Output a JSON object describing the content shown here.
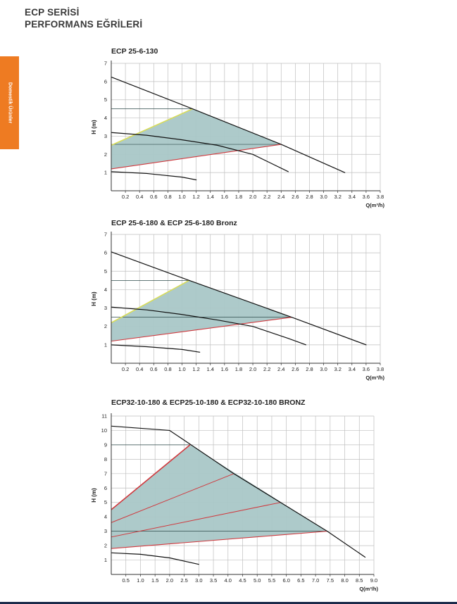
{
  "header": {
    "line1": "ECP SERİSİ",
    "line2": "PERFORMANS EĞRİLERİ"
  },
  "side_tab": {
    "label": "Domestik Ürünler",
    "color": "#ee7b22"
  },
  "colors": {
    "fill": "#a9c7c7",
    "min_line": "#d0393e",
    "upper_line": "#d8dc59",
    "curve": "#111111",
    "grid": "#bfbfbf"
  },
  "chart_data": [
    {
      "type": "line",
      "title": "ECP 25-6-130",
      "xlabel": "Q(m³/h)",
      "ylabel": "H (m)",
      "xlim": [
        0,
        3.8
      ],
      "ylim": [
        0,
        7
      ],
      "x_ticks": [
        "0.2",
        "0.4",
        "0.6",
        "0.8",
        "1.0",
        "1.2",
        "1.4",
        "1.6",
        "1.8",
        "2.0",
        "2.2",
        "2.4",
        "2.6",
        "2.8",
        "3.0",
        "3.2",
        "3.4",
        "3.6",
        "3.8"
      ],
      "y_ticks": [
        "1",
        "2",
        "3",
        "4",
        "5",
        "6",
        "7"
      ],
      "operating_area": [
        [
          0,
          2.5
        ],
        [
          1.15,
          4.5
        ],
        [
          2.4,
          2.55
        ],
        [
          0,
          1.2
        ]
      ],
      "series": [
        {
          "points": [
            [
              0,
              6.25
            ],
            [
              1.15,
              4.5
            ],
            [
              2.4,
              2.55
            ],
            [
              3.3,
              1.0
            ]
          ]
        },
        {
          "points": [
            [
              0,
              3.2
            ],
            [
              0.5,
              3.05
            ],
            [
              1.0,
              2.8
            ],
            [
              1.5,
              2.5
            ],
            [
              2.0,
              2.0
            ],
            [
              2.5,
              1.05
            ]
          ]
        },
        {
          "points": [
            [
              0,
              1.05
            ],
            [
              0.5,
              0.95
            ],
            [
              1.0,
              0.75
            ],
            [
              1.2,
              0.6
            ]
          ]
        }
      ]
    },
    {
      "type": "line",
      "title": "ECP 25-6-180 & ECP 25-6-180 Bronz",
      "xlabel": "Q(m³/h)",
      "ylabel": "H (m)",
      "xlim": [
        0,
        3.8
      ],
      "ylim": [
        0,
        7
      ],
      "x_ticks": [
        "0.2",
        "0.4",
        "0.6",
        "0.8",
        "1.0",
        "1.2",
        "1.4",
        "1.6",
        "1.8",
        "2.0",
        "2.2",
        "2.4",
        "2.6",
        "2.8",
        "3.0",
        "3.2",
        "3.4",
        "3.6",
        "3.8"
      ],
      "y_ticks": [
        "1",
        "2",
        "3",
        "4",
        "5",
        "6",
        "7"
      ],
      "operating_area": [
        [
          0,
          2.2
        ],
        [
          1.1,
          4.5
        ],
        [
          2.55,
          2.5
        ],
        [
          0,
          1.2
        ]
      ],
      "series": [
        {
          "points": [
            [
              0,
              6.05
            ],
            [
              1.1,
              4.5
            ],
            [
              2.55,
              2.5
            ],
            [
              3.6,
              1.0
            ]
          ]
        },
        {
          "points": [
            [
              0,
              3.05
            ],
            [
              0.5,
              2.9
            ],
            [
              1.0,
              2.65
            ],
            [
              1.5,
              2.35
            ],
            [
              2.0,
              2.0
            ],
            [
              2.5,
              1.35
            ],
            [
              2.75,
              1.0
            ]
          ]
        },
        {
          "points": [
            [
              0,
              1.0
            ],
            [
              0.5,
              0.9
            ],
            [
              1.0,
              0.75
            ],
            [
              1.25,
              0.6
            ]
          ]
        }
      ]
    },
    {
      "type": "line",
      "title": "ECP32-10-180 & ECP25-10-180 & ECP32-10-180 BRONZ",
      "xlabel": "Q(m³/h)",
      "ylabel": "H (m)",
      "xlim": [
        0,
        9.0
      ],
      "ylim": [
        0,
        11
      ],
      "x_ticks": [
        "0.5",
        "1.0",
        "1.5",
        "2.0",
        "2.5",
        "3.0",
        "3.5",
        "4.0",
        "4.5",
        "5.0",
        "5.5",
        "6.0",
        "6.5",
        "7.0",
        "7.5",
        "8.0",
        "8.5",
        "9.0"
      ],
      "y_ticks": [
        "1",
        "2",
        "3",
        "4",
        "5",
        "6",
        "7",
        "8",
        "9",
        "10",
        "11"
      ],
      "operating_area": [
        [
          0,
          4.5
        ],
        [
          2.7,
          9.0
        ],
        [
          7.4,
          3.0
        ],
        [
          0,
          1.8
        ]
      ],
      "series": [
        {
          "points": [
            [
              0,
              10.3
            ],
            [
              2.0,
              10.0
            ],
            [
              4.2,
              7.0
            ],
            [
              5.8,
              5.0
            ],
            [
              7.4,
              3.0
            ],
            [
              8.7,
              1.2
            ]
          ]
        },
        {
          "points": [
            [
              0,
              1.5
            ],
            [
              1.0,
              1.4
            ],
            [
              2.0,
              1.15
            ],
            [
              3.0,
              0.7
            ]
          ]
        }
      ],
      "speed_lines": [
        {
          "points": [
            [
              0,
              3.6
            ],
            [
              4.2,
              7.0
            ]
          ]
        },
        {
          "points": [
            [
              0,
              2.6
            ],
            [
              5.8,
              5.0
            ]
          ]
        }
      ]
    }
  ]
}
